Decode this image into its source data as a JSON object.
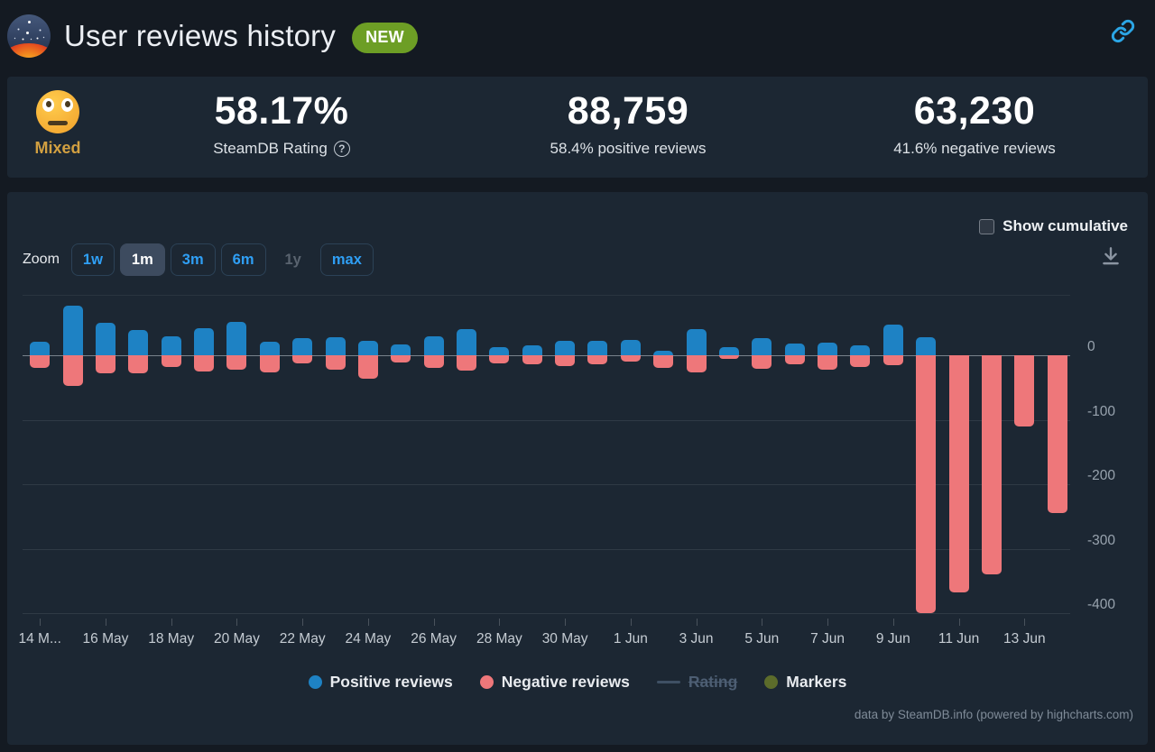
{
  "header": {
    "title": "User reviews history",
    "badge": "NEW"
  },
  "stats": {
    "rating_label": "Mixed",
    "rating_value": "58.17%",
    "rating_caption": "SteamDB Rating",
    "help_glyph": "?",
    "positive_count": "88,759",
    "positive_caption": "58.4% positive reviews",
    "negative_count": "63,230",
    "negative_caption": "41.6% negative reviews"
  },
  "controls": {
    "cumulative_label": "Show cumulative",
    "cumulative_checked": false,
    "zoom_label": "Zoom",
    "zoom_buttons": [
      {
        "label": "1w",
        "state": "normal"
      },
      {
        "label": "1m",
        "state": "selected"
      },
      {
        "label": "3m",
        "state": "normal"
      },
      {
        "label": "6m",
        "state": "normal"
      },
      {
        "label": "1y",
        "state": "disabled"
      },
      {
        "label": "max",
        "state": "normal"
      }
    ]
  },
  "legend": [
    {
      "label": "Positive reviews",
      "type": "circle",
      "color": "#1e82c4",
      "enabled": true
    },
    {
      "label": "Negative reviews",
      "type": "circle",
      "color": "#ee777a",
      "enabled": true
    },
    {
      "label": "Rating",
      "type": "line",
      "color": "#3f5064",
      "enabled": false
    },
    {
      "label": "Markers",
      "type": "circle",
      "color": "#5c6c2b",
      "enabled": true
    }
  ],
  "footer": "data by SteamDB.info (powered by highcharts.com)",
  "chart_data": {
    "type": "bar",
    "title": "User reviews history",
    "xlabel": "",
    "ylabel": "",
    "categories": [
      "14 May",
      "15 May",
      "16 May",
      "17 May",
      "18 May",
      "19 May",
      "20 May",
      "21 May",
      "22 May",
      "23 May",
      "24 May",
      "25 May",
      "26 May",
      "27 May",
      "28 May",
      "29 May",
      "30 May",
      "31 May",
      "1 Jun",
      "2 Jun",
      "3 Jun",
      "4 Jun",
      "5 Jun",
      "6 Jun",
      "7 Jun",
      "8 Jun",
      "9 Jun",
      "10 Jun",
      "11 Jun",
      "12 Jun",
      "13 Jun",
      "14 Jun"
    ],
    "series": [
      {
        "name": "Positive reviews",
        "color": "#1e82c4",
        "values": [
          21,
          77,
          50,
          39,
          30,
          42,
          52,
          21,
          27,
          28,
          23,
          17,
          30,
          40,
          13,
          16,
          22,
          23,
          24,
          7,
          40,
          13,
          26,
          18,
          20,
          15,
          48,
          28,
          0,
          0,
          0,
          0
        ]
      },
      {
        "name": "Negative reviews",
        "color": "#ee777a",
        "values": [
          -20,
          -48,
          -28,
          -28,
          -18,
          -25,
          -22,
          -27,
          -12,
          -22,
          -37,
          -11,
          -19,
          -24,
          -12,
          -14,
          -17,
          -14,
          -10,
          -20,
          -27,
          -6,
          -21,
          -14,
          -23,
          -18,
          -15,
          -400,
          -368,
          -340,
          -110,
          -245
        ]
      }
    ],
    "x_tick_labels": [
      "14 M...",
      "16 May",
      "18 May",
      "20 May",
      "22 May",
      "24 May",
      "26 May",
      "28 May",
      "30 May",
      "1 Jun",
      "3 Jun",
      "5 Jun",
      "7 Jun",
      "9 Jun",
      "11 Jun",
      "13 Jun"
    ],
    "y_ticks": [
      0,
      -100,
      -200,
      -300,
      -400
    ],
    "ylim": [
      -415,
      95
    ],
    "grid": true,
    "legend_position": "bottom"
  }
}
